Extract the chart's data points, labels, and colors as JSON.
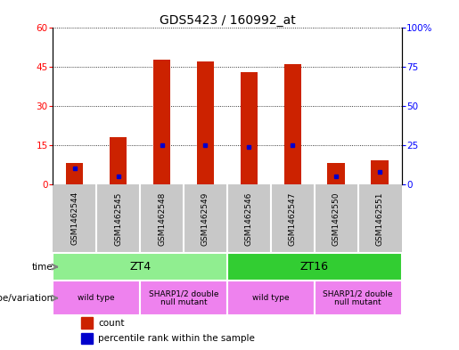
{
  "title": "GDS5423 / 160992_at",
  "samples": [
    "GSM1462544",
    "GSM1462545",
    "GSM1462548",
    "GSM1462549",
    "GSM1462546",
    "GSM1462547",
    "GSM1462550",
    "GSM1462551"
  ],
  "counts": [
    8,
    18,
    48,
    47,
    43,
    46,
    8,
    9
  ],
  "percentile_ranks": [
    10,
    5,
    25,
    25,
    24,
    25,
    5,
    8
  ],
  "left_ylim": [
    0,
    60
  ],
  "right_ylim": [
    0,
    100
  ],
  "left_yticks": [
    0,
    15,
    30,
    45,
    60
  ],
  "right_yticks": [
    0,
    25,
    50,
    75,
    100
  ],
  "right_yticklabels": [
    "0",
    "25",
    "50",
    "75",
    "100%"
  ],
  "bar_color": "#CC2200",
  "dot_color": "#0000CC",
  "time_groups": [
    {
      "label": "ZT4",
      "start": 0,
      "end": 4,
      "color": "#90EE90"
    },
    {
      "label": "ZT16",
      "start": 4,
      "end": 8,
      "color": "#32CD32"
    }
  ],
  "geno_groups": [
    {
      "label": "wild type",
      "start": 0,
      "end": 2
    },
    {
      "label": "SHARP1/2 double\nnull mutant",
      "start": 2,
      "end": 4
    },
    {
      "label": "wild type",
      "start": 4,
      "end": 6
    },
    {
      "label": "SHARP1/2 double\nnull mutant",
      "start": 6,
      "end": 8
    }
  ],
  "geno_color": "#EE82EE",
  "legend_count_label": "count",
  "legend_perc_label": "percentile rank within the sample",
  "label_time": "time",
  "label_geno": "genotype/variation"
}
